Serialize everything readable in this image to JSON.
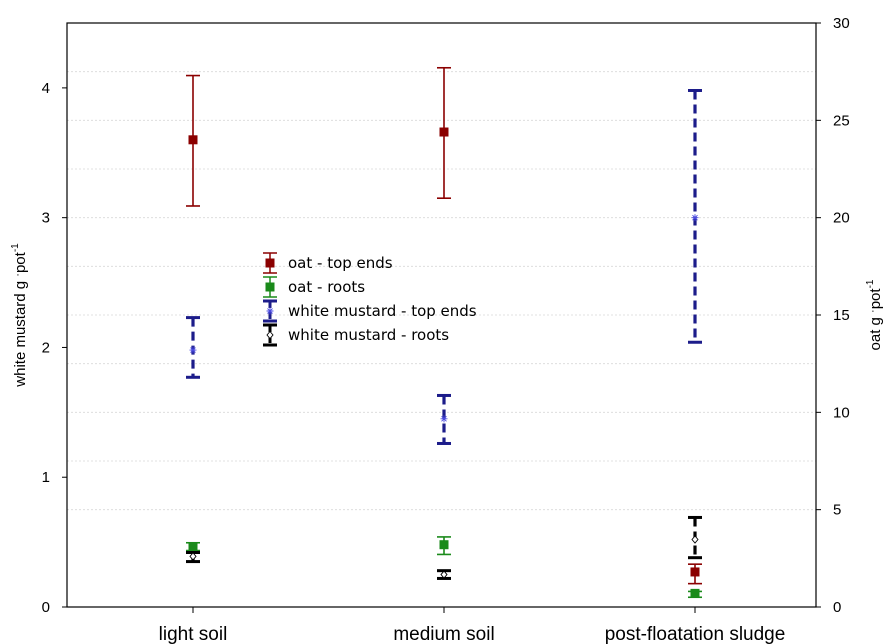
{
  "chart_data": {
    "type": "scatter",
    "categories": [
      "light soil",
      "medium  soil",
      "post-floatation sludge"
    ],
    "axes": {
      "left": {
        "label_main": "white mustard  g ",
        "label_dot": "·",
        "label_unit": "pot",
        "label_exp": "-1",
        "ylim": [
          0,
          4.5
        ],
        "ticks": [
          "0",
          "1",
          "2",
          "3",
          "4"
        ]
      },
      "right": {
        "label_main": "oat g ",
        "label_dot": "·",
        "label_unit": "pot",
        "label_exp": "-1",
        "ylim": [
          0,
          30
        ],
        "ticks": [
          "0",
          "5",
          "10",
          "15",
          "20",
          "25",
          "30"
        ]
      }
    },
    "grid": true,
    "legend_position": "center-left",
    "series": [
      {
        "name": "oat - top ends",
        "axis": "right",
        "marker": "square",
        "color": "#8b0000",
        "dash": "solid",
        "values": [
          24.0,
          24.4,
          1.8
        ],
        "lower": [
          20.6,
          21.0,
          1.2
        ],
        "upper": [
          27.3,
          27.7,
          2.2
        ]
      },
      {
        "name": "oat - roots",
        "axis": "right",
        "marker": "square",
        "color": "#1a8a1a",
        "dash": "solid",
        "values": [
          3.1,
          3.2,
          0.7
        ],
        "lower": [
          2.9,
          2.7,
          0.5
        ],
        "upper": [
          3.3,
          3.6,
          0.8
        ]
      },
      {
        "name": "white mustard  - top ends",
        "axis": "left",
        "marker": "asterisk",
        "color": "#1c1c8a",
        "dash": "dashed",
        "values": [
          1.98,
          1.45,
          3.0
        ],
        "lower": [
          1.77,
          1.26,
          2.04
        ],
        "upper": [
          2.23,
          1.63,
          3.98
        ]
      },
      {
        "name": "white mustard  - roots",
        "axis": "left",
        "marker": "diamond",
        "color": "#000000",
        "dash": "dashed",
        "values": [
          0.39,
          0.25,
          0.52
        ],
        "lower": [
          0.35,
          0.22,
          0.38
        ],
        "upper": [
          0.42,
          0.28,
          0.69
        ]
      }
    ]
  }
}
